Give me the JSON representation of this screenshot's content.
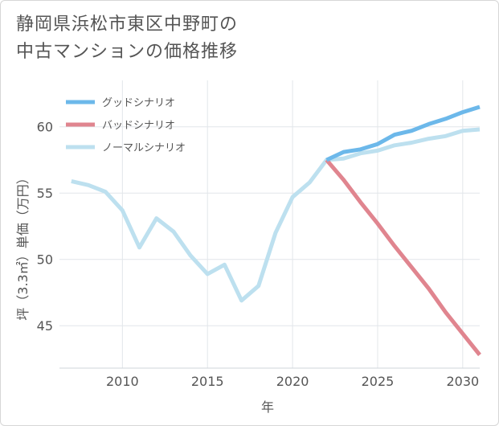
{
  "title_lines": [
    "静岡県浜松市東区中野町の",
    "中古マンションの価格推移"
  ],
  "colors": {
    "good": "#6cb8ea",
    "bad": "#e0858f",
    "normal": "#bde0ef",
    "grid": "#e2e6ea",
    "axis": "#cfd4da",
    "text": "#555555"
  },
  "chart_data": {
    "type": "line",
    "xlabel": "年",
    "ylabel": "坪（3.3㎡）単価（万円）",
    "xlim": [
      2006.3,
      2031
    ],
    "ylim": [
      41.8,
      63.5
    ],
    "x_ticks": [
      2010,
      2015,
      2020,
      2025,
      2030
    ],
    "y_ticks": [
      45,
      50,
      55,
      60
    ],
    "grid": true,
    "legend_position": "top-left",
    "series": [
      {
        "name": "グッドシナリオ",
        "key": "good",
        "x": [
          2022,
          2023,
          2024,
          2025,
          2026,
          2027,
          2028,
          2029,
          2030,
          2031
        ],
        "y": [
          57.5,
          58.1,
          58.3,
          58.7,
          59.4,
          59.7,
          60.2,
          60.6,
          61.1,
          61.5
        ]
      },
      {
        "name": "バッドシナリオ",
        "key": "bad",
        "x": [
          2022,
          2023,
          2024,
          2025,
          2026,
          2027,
          2028,
          2029,
          2030,
          2031
        ],
        "y": [
          57.5,
          56.0,
          54.3,
          52.7,
          51.0,
          49.4,
          47.8,
          46.0,
          44.4,
          42.8
        ]
      },
      {
        "name": "ノーマルシナリオ",
        "key": "normal",
        "x": [
          2007,
          2008,
          2009,
          2010,
          2011,
          2012,
          2013,
          2014,
          2015,
          2016,
          2017,
          2018,
          2019,
          2020,
          2021,
          2022,
          2023,
          2024,
          2025,
          2026,
          2027,
          2028,
          2029,
          2030,
          2031
        ],
        "y": [
          55.9,
          55.6,
          55.1,
          53.7,
          50.9,
          53.1,
          52.1,
          50.3,
          48.9,
          49.6,
          46.9,
          48.0,
          52.0,
          54.7,
          55.8,
          57.5,
          57.6,
          58.0,
          58.2,
          58.6,
          58.8,
          59.1,
          59.3,
          59.7,
          59.8
        ]
      }
    ]
  }
}
